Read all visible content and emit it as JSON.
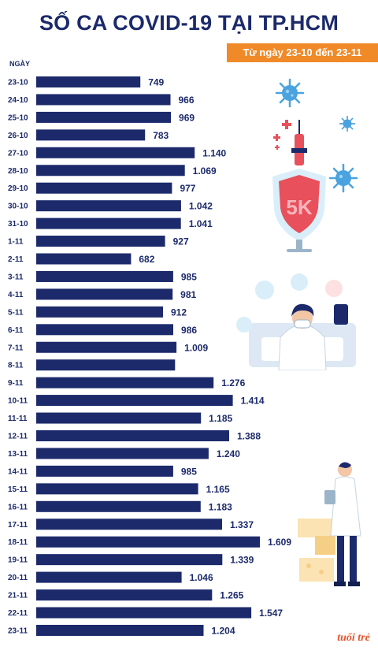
{
  "header": {
    "title": "SỐ CA COVID-19 TẠI TP.HCM",
    "subtitle": "Từ ngày 23-10 đến 23-11"
  },
  "brand": {
    "logo": "tuổi trẻ"
  },
  "colors": {
    "bar": "#1c2a6b",
    "accent": "#f08a28",
    "brand": "#e8542b"
  },
  "chart_data": {
    "type": "bar",
    "orientation": "horizontal",
    "ylabel": "NGÀY",
    "title": "SỐ CA COVID-19 TẠI TP.HCM",
    "subtitle": "Từ ngày 23-10 đến 23-11",
    "categories": [
      "23-10",
      "24-10",
      "25-10",
      "26-10",
      "27-10",
      "28-10",
      "29-10",
      "30-10",
      "31-10",
      "1-11",
      "2-11",
      "3-11",
      "4-11",
      "5-11",
      "6-11",
      "7-11",
      "8-11",
      "9-11",
      "10-11",
      "11-11",
      "12-11",
      "13-11",
      "14-11",
      "15-11",
      "16-11",
      "17-11",
      "18-11",
      "19-11",
      "20-11",
      "21-11",
      "22-11",
      "23-11"
    ],
    "values": [
      749,
      966,
      969,
      783,
      1140,
      1069,
      977,
      1042,
      1041,
      927,
      682,
      985,
      981,
      912,
      986,
      1009,
      999,
      1276,
      1414,
      1185,
      1388,
      1240,
      985,
      1165,
      1183,
      1337,
      1609,
      1339,
      1046,
      1265,
      1547,
      1204
    ],
    "labels": [
      "749",
      "966",
      "969",
      "783",
      "1.140",
      "1.069",
      "977",
      "1.042",
      "1.041",
      "927",
      "682",
      "985",
      "981",
      "912",
      "986",
      "1.009",
      "",
      "1.276",
      "1.414",
      "1.185",
      "1.388",
      "1.240",
      "985",
      "1.165",
      "1.183",
      "1.337",
      "1.609",
      "1.339",
      "1.046",
      "1.265",
      "1.547",
      "1.204"
    ]
  },
  "illustrations": [
    "virus-icon",
    "syringe-icon",
    "shield-5k-icon",
    "doctor-video-call-icon",
    "doctor-icon"
  ]
}
